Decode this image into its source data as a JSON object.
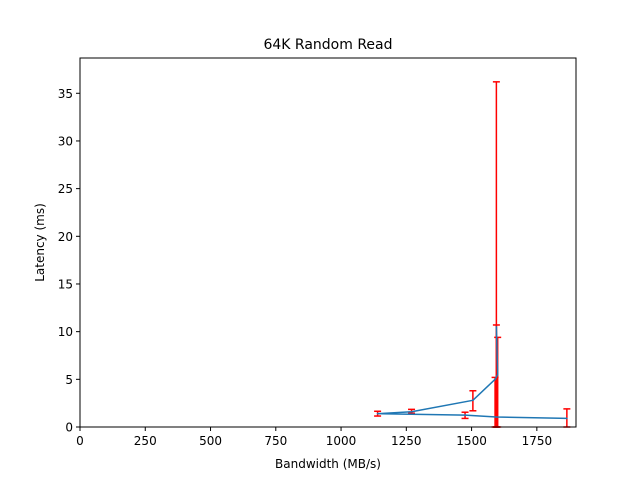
{
  "chart_data": {
    "type": "line",
    "title": "64K  Random Read",
    "xlabel": "Bandwidth (MB/s)",
    "ylabel": "Latency (ms)",
    "xlim": [
      0,
      1900
    ],
    "ylim": [
      0,
      38.7
    ],
    "xticks": [
      0,
      250,
      500,
      750,
      1000,
      1250,
      1500,
      1750
    ],
    "yticks": [
      0,
      5,
      10,
      15,
      20,
      25,
      30,
      35
    ],
    "grid": false,
    "legend": "none",
    "series": [
      {
        "color": "#1f77b4",
        "error_color": "#ff0000",
        "points": [
          {
            "x": 1865,
            "y": 0.9,
            "lo": 0.0,
            "hi": 1.9
          },
          {
            "x": 1595,
            "y": 1.05,
            "lo": 0.0,
            "hi": 36.2
          },
          {
            "x": 1475,
            "y": 1.25,
            "lo": 0.9,
            "hi": 1.55
          },
          {
            "x": 1140,
            "y": 1.4,
            "lo": 1.15,
            "hi": 1.65
          },
          {
            "x": 1270,
            "y": 1.6,
            "lo": 1.45,
            "hi": 1.85
          },
          {
            "x": 1505,
            "y": 2.8,
            "lo": 1.7,
            "hi": 3.8
          },
          {
            "x": 1590,
            "y": 5.0,
            "lo": 0.0,
            "hi": 5.2
          },
          {
            "x": 1600,
            "y": 5.5,
            "lo": 0.0,
            "hi": 9.4
          },
          {
            "x": 1595,
            "y": 10.5,
            "lo": 0.0,
            "hi": 10.7
          }
        ]
      }
    ]
  }
}
